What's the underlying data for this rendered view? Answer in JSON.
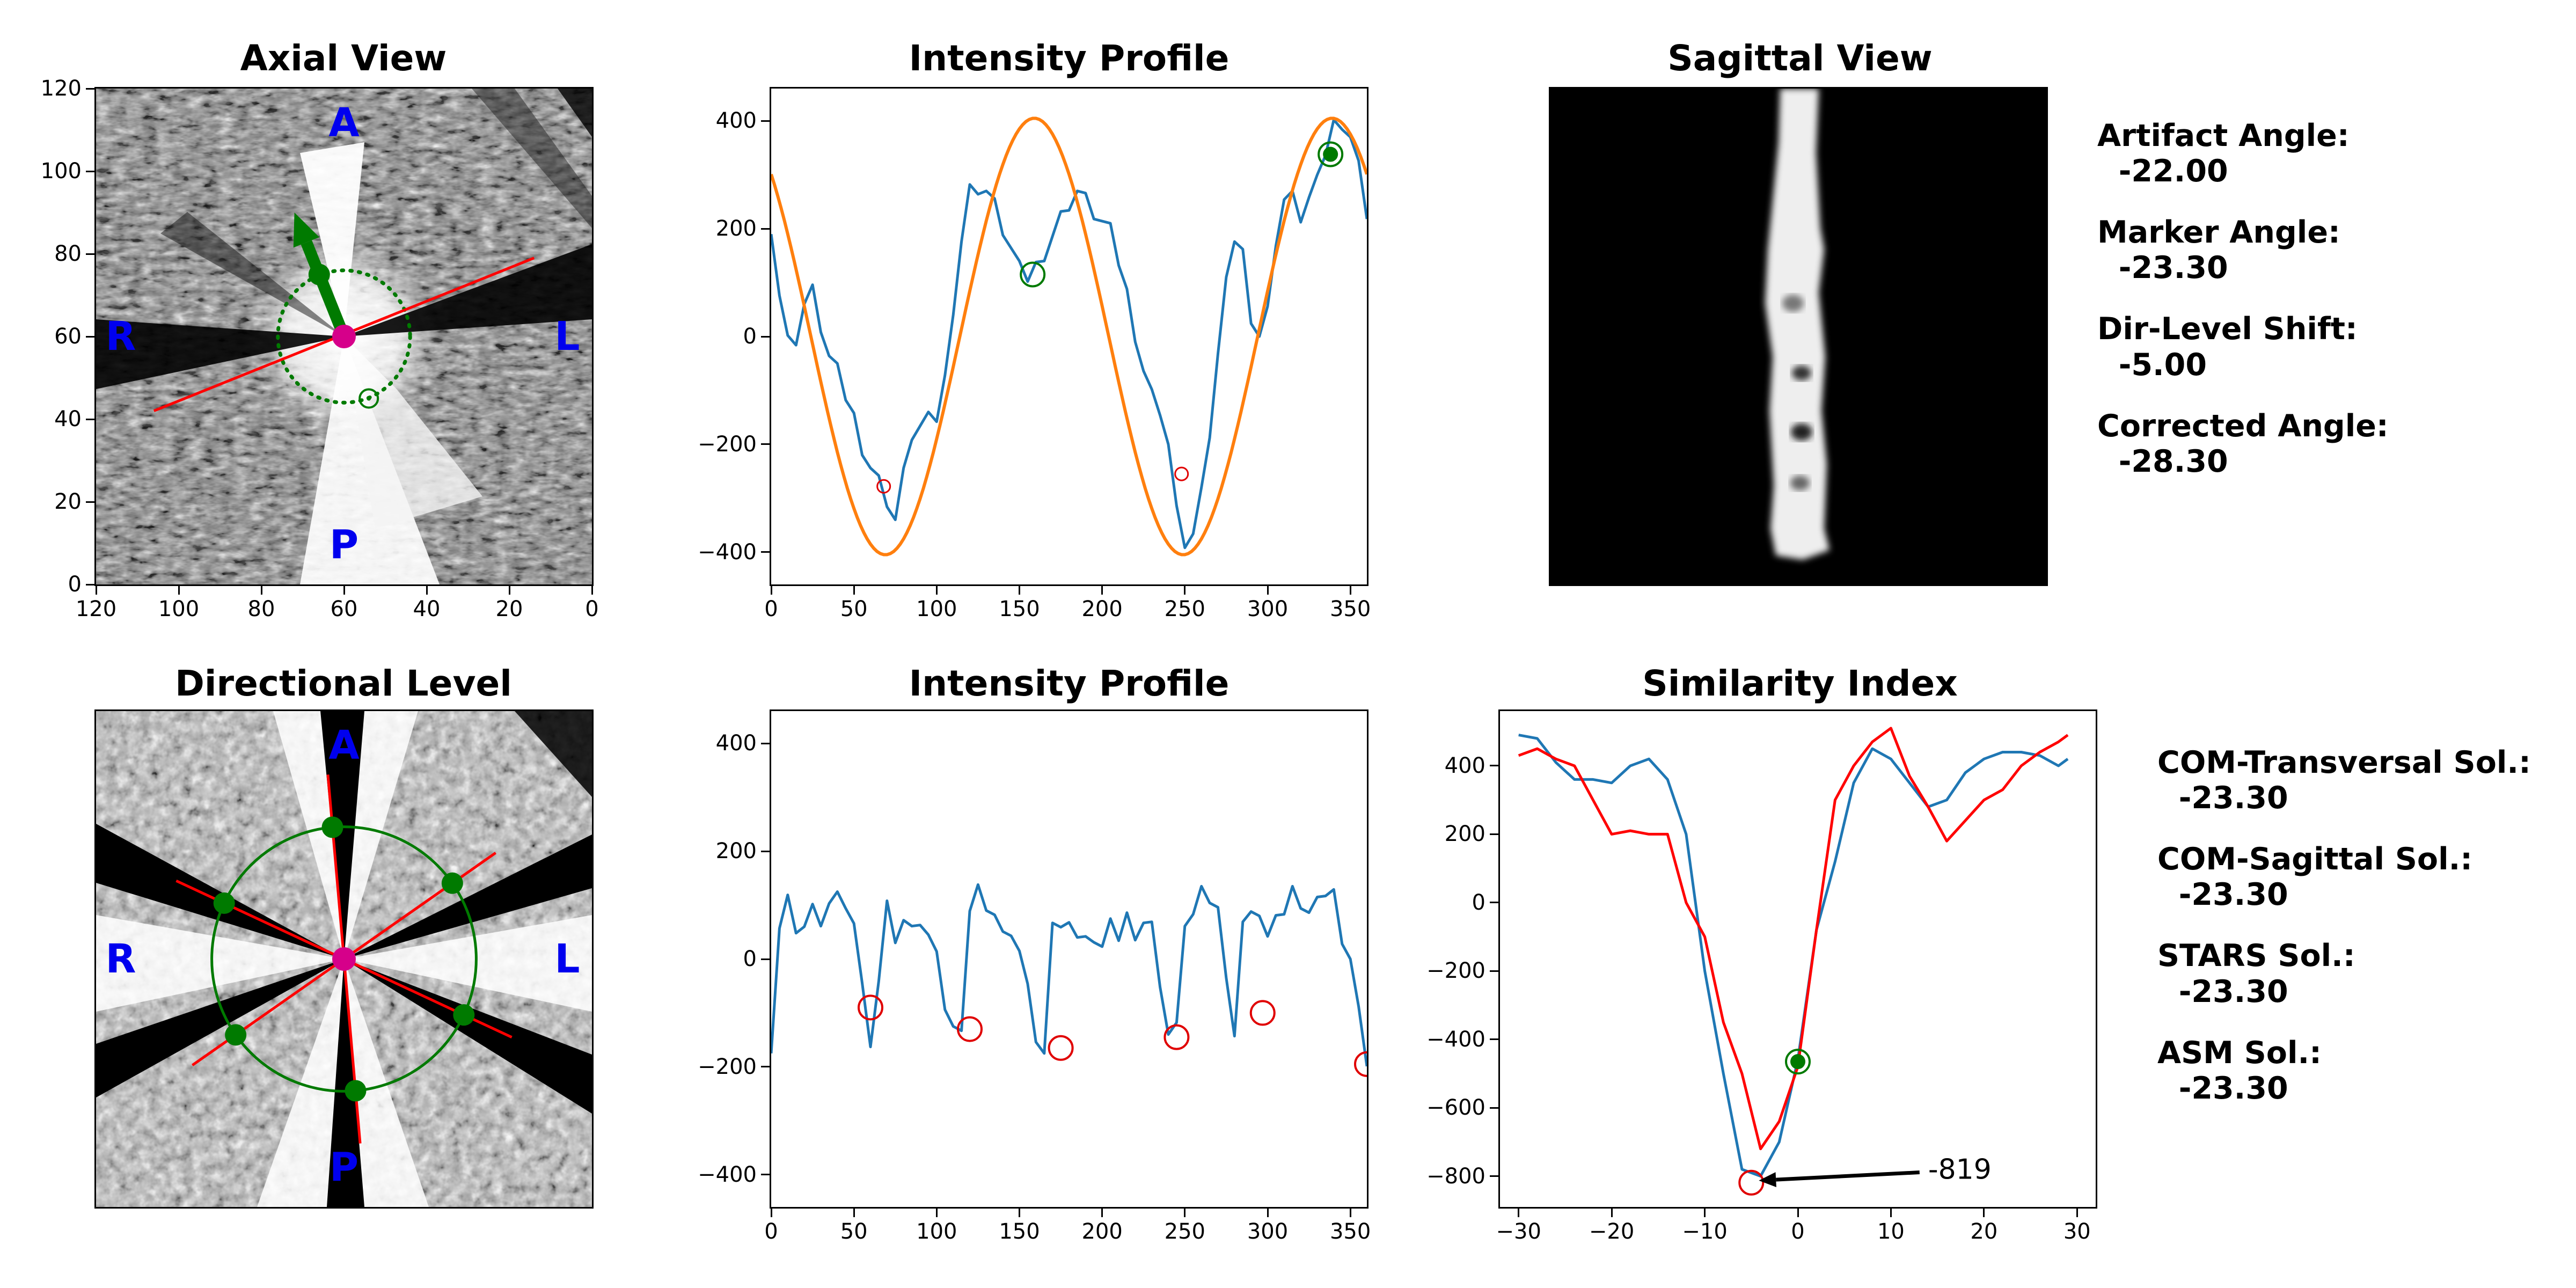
{
  "titles": {
    "axial": "Axial View",
    "profile_top": "Intensity Profile",
    "sagittal": "Sagittal View",
    "directional": "Directional Level",
    "profile_bottom": "Intensity Profile",
    "similarity": "Similarity Index"
  },
  "orientation_labels": {
    "anterior": "A",
    "posterior": "P",
    "right": "R",
    "left": "L"
  },
  "colors": {
    "profile": "#1f77b4",
    "fit": "#ff7f0e",
    "marker_green": "#007a00",
    "marker_red": "#e00000",
    "center": "#d6008a",
    "label_blue": "#0000ee",
    "similarity_red": "#ff0000"
  },
  "info_top": [
    {
      "label": "Artifact Angle:",
      "value": "-22.00"
    },
    {
      "label": "Marker Angle:",
      "value": "-23.30"
    },
    {
      "label": "Dir-Level Shift:",
      "value": "-5.00"
    },
    {
      "label": "Corrected Angle:",
      "value": "-28.30"
    }
  ],
  "info_bottom": [
    {
      "label": "COM-Transversal Sol.:",
      "value": "-23.30"
    },
    {
      "label": "COM-Sagittal Sol.:",
      "value": "-23.30"
    },
    {
      "label": "STARS Sol.:",
      "value": "-23.30"
    },
    {
      "label": "ASM Sol.:",
      "value": "-23.30"
    }
  ],
  "chart_data": [
    {
      "id": "axial",
      "type": "scatter",
      "title": "Axial View",
      "xlim": [
        120,
        0
      ],
      "ylim": [
        0,
        120
      ],
      "x_ticks": [
        "120",
        "100",
        "80",
        "60",
        "40",
        "20",
        "0"
      ],
      "y_ticks": [
        "0",
        "20",
        "40",
        "60",
        "80",
        "100",
        "120"
      ],
      "center": [
        60,
        60
      ],
      "marker_point": [
        66,
        75
      ],
      "arrow_tip": [
        72,
        90
      ],
      "small_marker": [
        54,
        45
      ],
      "line": [
        [
          106,
          42
        ],
        [
          14,
          79
        ]
      ],
      "circle_radius": 16
    },
    {
      "id": "profile_top",
      "type": "line",
      "title": "Intensity Profile",
      "xlim": [
        0,
        360
      ],
      "ylim": [
        -460,
        460
      ],
      "x_ticks": [
        "0",
        "50",
        "100",
        "150",
        "200",
        "250",
        "300",
        "350"
      ],
      "y_ticks": [
        "-400",
        "-200",
        "0",
        "200",
        "400"
      ],
      "y_tick_values": [
        -400,
        -200,
        0,
        200,
        400
      ],
      "x_tick_values": [
        0,
        50,
        100,
        150,
        200,
        250,
        300,
        350
      ],
      "series": [
        {
          "x": [
            0,
            5,
            10,
            15,
            20,
            25,
            30,
            35,
            40,
            45,
            50,
            55,
            60,
            65,
            70,
            75,
            80,
            85,
            90,
            95,
            100,
            105,
            110,
            115,
            120,
            125,
            130,
            135,
            140,
            145,
            150,
            155,
            160,
            165,
            170,
            175,
            180,
            185,
            190,
            195,
            200,
            205,
            210,
            215,
            220,
            225,
            230,
            235,
            240,
            245,
            250,
            255,
            260,
            265,
            270,
            275,
            280,
            285,
            290,
            295,
            300,
            305,
            310,
            315,
            320,
            325,
            330,
            335,
            340,
            345,
            350,
            355,
            360
          ],
          "values": [
            210,
            80,
            -10,
            0,
            60,
            80,
            20,
            -40,
            -70,
            -110,
            -150,
            -200,
            -240,
            -270,
            -300,
            -340,
            -260,
            -180,
            -170,
            -160,
            -150,
            -80,
            60,
            180,
            270,
            280,
            270,
            240,
            200,
            160,
            120,
            110,
            130,
            160,
            190,
            220,
            250,
            270,
            250,
            230,
            210,
            190,
            140,
            80,
            10,
            -60,
            -110,
            -130,
            -200,
            -330,
            -380,
            -370,
            -300,
            -180,
            -40,
            130,
            180,
            150,
            40,
            0,
            40,
            180,
            250,
            250,
            220,
            250,
            320,
            340,
            390,
            400,
            370,
            310,
            230
          ]
        },
        {
          "name": "",
          "type": "sine_fit",
          "amplitude": 405,
          "peaks_at": [
            159,
            339
          ]
        }
      ],
      "markers": [
        {
          "x": 68,
          "y": -278,
          "kind": "small-red"
        },
        {
          "x": 248,
          "y": -255,
          "kind": "small-red"
        },
        {
          "x": 158,
          "y": 115,
          "kind": "green-ring"
        },
        {
          "x": 338,
          "y": 338,
          "kind": "green-filled"
        }
      ]
    },
    {
      "id": "sagittal",
      "type": "heatmap",
      "title": "Sagittal View"
    },
    {
      "id": "directional",
      "type": "scatter",
      "title": "Directional Level",
      "center": [
        60,
        60
      ],
      "circle_radius": 32,
      "markers_angles": [
        -5,
        55,
        115,
        175,
        235,
        295
      ]
    },
    {
      "id": "profile_bottom",
      "type": "line",
      "title": "Intensity Profile",
      "xlim": [
        0,
        360
      ],
      "ylim": [
        -460,
        460
      ],
      "x_ticks": [
        "0",
        "50",
        "100",
        "150",
        "200",
        "250",
        "300",
        "350"
      ],
      "y_ticks": [
        "-400",
        "-200",
        "0",
        "200",
        "400"
      ],
      "y_tick_values": [
        -400,
        -200,
        0,
        200,
        400
      ],
      "x_tick_values": [
        0,
        50,
        100,
        150,
        200,
        250,
        300,
        350
      ],
      "series": [
        {
          "x": [
            0,
            5,
            10,
            15,
            20,
            25,
            30,
            35,
            40,
            45,
            50,
            55,
            60,
            65,
            70,
            75,
            80,
            85,
            90,
            95,
            100,
            105,
            110,
            115,
            120,
            125,
            130,
            135,
            140,
            145,
            150,
            155,
            160,
            165,
            170,
            175,
            180,
            185,
            190,
            195,
            200,
            205,
            210,
            215,
            220,
            225,
            230,
            235,
            240,
            245,
            250,
            255,
            260,
            265,
            270,
            275,
            280,
            285,
            290,
            295,
            300,
            305,
            310,
            315,
            320,
            325,
            330,
            335,
            340,
            345,
            350,
            355,
            360
          ],
          "values": [
            -160,
            60,
            110,
            60,
            60,
            90,
            70,
            100,
            110,
            100,
            60,
            -30,
            -160,
            -50,
            120,
            30,
            60,
            70,
            60,
            30,
            20,
            -100,
            -110,
            -130,
            80,
            150,
            90,
            70,
            60,
            40,
            0,
            -40,
            -160,
            -160,
            70,
            50,
            80,
            40,
            30,
            40,
            20,
            60,
            40,
            80,
            50,
            70,
            60,
            -40,
            -140,
            -130,
            70,
            80,
            120,
            110,
            90,
            -20,
            -140,
            60,
            100,
            80,
            30,
            90,
            80,
            120,
            100,
            80,
            130,
            120,
            120,
            40,
            0,
            -100,
            -190
          ],
          "x_override": [
            0,
            5,
            10,
            15,
            20,
            25,
            30,
            35,
            40,
            45,
            50,
            55,
            60,
            65,
            70,
            75,
            80,
            85,
            90,
            95,
            100,
            105,
            110,
            115,
            120,
            125,
            130,
            135,
            140,
            145,
            150,
            155,
            160,
            165,
            170,
            175,
            180,
            185,
            190,
            195,
            200,
            205,
            210,
            215,
            220,
            225,
            230,
            235,
            240,
            245,
            250,
            255,
            260,
            265,
            270,
            275,
            280,
            285,
            290,
            295,
            300,
            305,
            310,
            315,
            320,
            325,
            330,
            335,
            340,
            345,
            350,
            355,
            360
          ]
        }
      ],
      "markers": [
        {
          "x": 60,
          "y": -90,
          "kind": "red-ring"
        },
        {
          "x": 120,
          "y": -130,
          "kind": "red-ring"
        },
        {
          "x": 175,
          "y": -165,
          "kind": "red-ring"
        },
        {
          "x": 245,
          "y": -145,
          "kind": "red-ring"
        },
        {
          "x": 297,
          "y": -100,
          "kind": "red-ring"
        },
        {
          "x": 360,
          "y": -195,
          "kind": "red-ring"
        }
      ]
    },
    {
      "id": "similarity",
      "type": "line",
      "title": "Similarity Index",
      "xlim": [
        -32,
        32
      ],
      "ylim": [
        -890,
        560
      ],
      "x_ticks": [
        "-30",
        "-20",
        "-10",
        "0",
        "10",
        "20",
        "30"
      ],
      "x_tick_values": [
        -30,
        -20,
        -10,
        0,
        10,
        20,
        30
      ],
      "y_ticks": [
        "-800",
        "-600",
        "-400",
        "-200",
        "0",
        "200",
        "400"
      ],
      "y_tick_values": [
        -800,
        -600,
        -400,
        -200,
        0,
        200,
        400
      ],
      "series": [
        {
          "x": [
            -30,
            -28,
            -26,
            -24,
            -22,
            -20,
            -18,
            -16,
            -14,
            -12,
            -10,
            -8,
            -6,
            -4,
            -2,
            0,
            2,
            4,
            6,
            8,
            10,
            12,
            14,
            16,
            18,
            20,
            22,
            24,
            26,
            28,
            29
          ],
          "values": [
            490,
            480,
            410,
            360,
            360,
            350,
            400,
            420,
            360,
            200,
            -200,
            -500,
            -780,
            -800,
            -700,
            -460,
            -80,
            120,
            350,
            450,
            420,
            350,
            280,
            300,
            380,
            420,
            440,
            440,
            430,
            400,
            420
          ]
        },
        {
          "x": [
            -30,
            -28,
            -26,
            -24,
            -22,
            -20,
            -18,
            -16,
            -14,
            -12,
            -10,
            -8,
            -6,
            -4,
            -2,
            0,
            2,
            4,
            6,
            8,
            10,
            12,
            14,
            16,
            18,
            20,
            22,
            24,
            26,
            28,
            29
          ],
          "values": [
            430,
            450,
            420,
            400,
            300,
            200,
            210,
            200,
            200,
            0,
            -100,
            -350,
            -500,
            -720,
            -640,
            -480,
            -80,
            300,
            400,
            470,
            510,
            370,
            280,
            180,
            240,
            300,
            330,
            400,
            440,
            470,
            490
          ]
        }
      ],
      "markers": [
        {
          "x": 0,
          "y": -465,
          "kind": "green-filled"
        },
        {
          "x": -5,
          "y": -819,
          "kind": "red-ring"
        }
      ],
      "annotation": {
        "text": "-819",
        "x": -5,
        "y": -819,
        "text_x": 14,
        "text_y": -770
      }
    }
  ]
}
